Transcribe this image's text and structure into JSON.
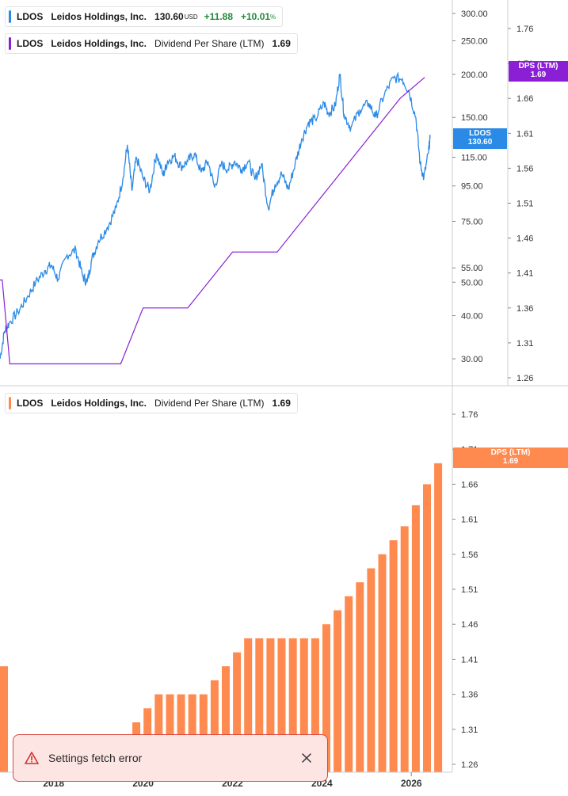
{
  "chart_data": [
    {
      "type": "line",
      "ticker": "LDOS",
      "company": "Leidos Holdings, Inc.",
      "price": "130.60",
      "currency": "USD",
      "change": "+11.88",
      "change_pct": "+10.01",
      "pct_symbol": "%",
      "scale": "log",
      "ylim": [
        24,
        320
      ],
      "y_ticks": [
        "300.00",
        "250.00",
        "200.00",
        "150.00",
        "115.00",
        "95.00",
        "75.00",
        "55.00",
        "50.00",
        "40.00",
        "30.00"
      ],
      "last_label": {
        "name": "LDOS",
        "value": "130.60"
      },
      "price_series": [
        [
          2016.8,
          30
        ],
        [
          2016.9,
          36
        ],
        [
          2017.0,
          38
        ],
        [
          2017.2,
          41
        ],
        [
          2017.4,
          45
        ],
        [
          2017.6,
          50
        ],
        [
          2017.8,
          54
        ],
        [
          2017.95,
          56
        ],
        [
          2018.1,
          51
        ],
        [
          2018.3,
          60
        ],
        [
          2018.5,
          62
        ],
        [
          2018.65,
          52
        ],
        [
          2018.75,
          50
        ],
        [
          2018.85,
          58
        ],
        [
          2019.0,
          66
        ],
        [
          2019.2,
          72
        ],
        [
          2019.4,
          82
        ],
        [
          2019.55,
          100
        ],
        [
          2019.65,
          125
        ],
        [
          2019.75,
          92
        ],
        [
          2019.85,
          115
        ],
        [
          2020.0,
          100
        ],
        [
          2020.15,
          92
        ],
        [
          2020.3,
          118
        ],
        [
          2020.45,
          102
        ],
        [
          2020.55,
          112
        ],
        [
          2020.7,
          116
        ],
        [
          2020.85,
          108
        ],
        [
          2021.0,
          112
        ],
        [
          2021.15,
          118
        ],
        [
          2021.3,
          104
        ],
        [
          2021.45,
          112
        ],
        [
          2021.6,
          94
        ],
        [
          2021.75,
          110
        ],
        [
          2021.9,
          106
        ],
        [
          2022.05,
          112
        ],
        [
          2022.2,
          106
        ],
        [
          2022.35,
          112
        ],
        [
          2022.5,
          99
        ],
        [
          2022.65,
          110
        ],
        [
          2022.8,
          82
        ],
        [
          2022.95,
          96
        ],
        [
          2023.1,
          103
        ],
        [
          2023.25,
          93
        ],
        [
          2023.4,
          110
        ],
        [
          2023.55,
          130
        ],
        [
          2023.7,
          145
        ],
        [
          2023.85,
          148
        ],
        [
          2024.05,
          165
        ],
        [
          2024.15,
          154
        ],
        [
          2024.3,
          162
        ],
        [
          2024.4,
          200
        ],
        [
          2024.5,
          152
        ],
        [
          2024.65,
          140
        ],
        [
          2024.85,
          158
        ],
        [
          2025.05,
          165
        ],
        [
          2025.2,
          150
        ],
        [
          2025.4,
          175
        ],
        [
          2025.6,
          195
        ],
        [
          2025.8,
          194
        ],
        [
          2025.95,
          178
        ],
        [
          2026.1,
          150
        ],
        [
          2026.2,
          110
        ],
        [
          2026.28,
          100
        ],
        [
          2026.38,
          118
        ],
        [
          2026.42,
          130.6
        ]
      ]
    },
    {
      "type": "step",
      "ticker": "LDOS",
      "company": "Leidos Holdings, Inc.",
      "metric": "Dividend Per Share (LTM)",
      "value": "1.69",
      "color": "#8a1fd6",
      "ylim": [
        1.24,
        1.8
      ],
      "y_ticks": [
        "1.76",
        "1.71",
        "1.66",
        "1.61",
        "1.56",
        "1.51",
        "1.46",
        "1.41",
        "1.36",
        "1.31",
        "1.26"
      ],
      "tag": {
        "line1": "DPS (LTM)",
        "line2": "1.69"
      },
      "series": [
        [
          2016.7,
          1.4
        ],
        [
          2016.85,
          1.4
        ],
        [
          2017.02,
          1.28
        ],
        [
          2019.5,
          1.28
        ],
        [
          2020.0,
          1.36
        ],
        [
          2021.0,
          1.36
        ],
        [
          2022.0,
          1.44
        ],
        [
          2023.0,
          1.44
        ],
        [
          2024.0,
          1.52
        ],
        [
          2025.0,
          1.6
        ],
        [
          2025.75,
          1.66
        ],
        [
          2026.3,
          1.69
        ]
      ]
    },
    {
      "type": "bar",
      "ticker": "LDOS",
      "company": "Leidos Holdings, Inc.",
      "metric": "Dividend Per Share (LTM)",
      "value": "1.69",
      "color": "#ff8a50",
      "ylim": [
        1.24,
        1.8
      ],
      "y_ticks": [
        "1.76",
        "1.71",
        "1.66",
        "1.61",
        "1.56",
        "1.51",
        "1.46",
        "1.41",
        "1.36",
        "1.31",
        "1.26"
      ],
      "x_ticks": [
        "2018",
        "2020",
        "2022",
        "2024",
        "2026"
      ],
      "tag": {
        "line1": "DPS (LTM)",
        "line2": "1.69"
      },
      "bars": [
        [
          2016.7,
          1.4
        ],
        [
          2019.6,
          1.3
        ],
        [
          2019.85,
          1.32
        ],
        [
          2020.1,
          1.34
        ],
        [
          2020.35,
          1.36
        ],
        [
          2020.6,
          1.36
        ],
        [
          2020.85,
          1.36
        ],
        [
          2021.1,
          1.36
        ],
        [
          2021.35,
          1.36
        ],
        [
          2021.6,
          1.38
        ],
        [
          2021.85,
          1.4
        ],
        [
          2022.1,
          1.42
        ],
        [
          2022.35,
          1.44
        ],
        [
          2022.6,
          1.44
        ],
        [
          2022.85,
          1.44
        ],
        [
          2023.1,
          1.44
        ],
        [
          2023.35,
          1.44
        ],
        [
          2023.6,
          1.44
        ],
        [
          2023.85,
          1.44
        ],
        [
          2024.1,
          1.46
        ],
        [
          2024.35,
          1.48
        ],
        [
          2024.6,
          1.5
        ],
        [
          2024.85,
          1.52
        ],
        [
          2025.1,
          1.54
        ],
        [
          2025.35,
          1.56
        ],
        [
          2025.6,
          1.58
        ],
        [
          2025.85,
          1.6
        ],
        [
          2026.1,
          1.63
        ],
        [
          2026.35,
          1.66
        ],
        [
          2026.6,
          1.69
        ]
      ]
    }
  ],
  "toast": {
    "message": "Settings fetch error"
  }
}
